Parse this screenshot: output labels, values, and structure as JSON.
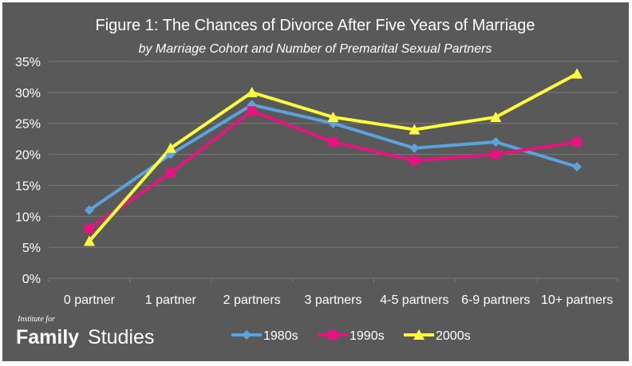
{
  "chart_data": {
    "type": "line",
    "title": "Figure 1: The Chances of Divorce After Five Years of Marriage",
    "subtitle": "by Marriage Cohort and Number of Premarital Sexual Partners",
    "xlabel": "",
    "ylabel": "",
    "categories": [
      "0 partner",
      "1 partner",
      "2 partners",
      "3 partners",
      "4-5 partners",
      "6-9 partners",
      "10+ partners"
    ],
    "ylim": [
      0,
      35
    ],
    "yticks": [
      0,
      5,
      10,
      15,
      20,
      25,
      30,
      35
    ],
    "ytick_labels": [
      "0%",
      "5%",
      "10%",
      "15%",
      "20%",
      "25%",
      "30%",
      "35%"
    ],
    "grid": true,
    "legend_position": "bottom",
    "series": [
      {
        "name": "1980s",
        "color": "#5aa3dc",
        "marker": "diamond",
        "values": [
          11,
          20,
          28,
          25,
          21,
          22,
          18
        ]
      },
      {
        "name": "1990s",
        "color": "#e5147f",
        "marker": "square",
        "values": [
          8,
          17,
          27,
          22,
          19,
          20,
          22
        ]
      },
      {
        "name": "2000s",
        "color": "#ffff3d",
        "marker": "triangle",
        "values": [
          6,
          21,
          30,
          26,
          24,
          26,
          33
        ]
      }
    ]
  },
  "brand": {
    "small": "Institute for",
    "family": "Family",
    "studies": "Studies"
  },
  "colors": {
    "background": "#595959",
    "gridline": "#7a7a7a",
    "text": "#ffffff"
  }
}
